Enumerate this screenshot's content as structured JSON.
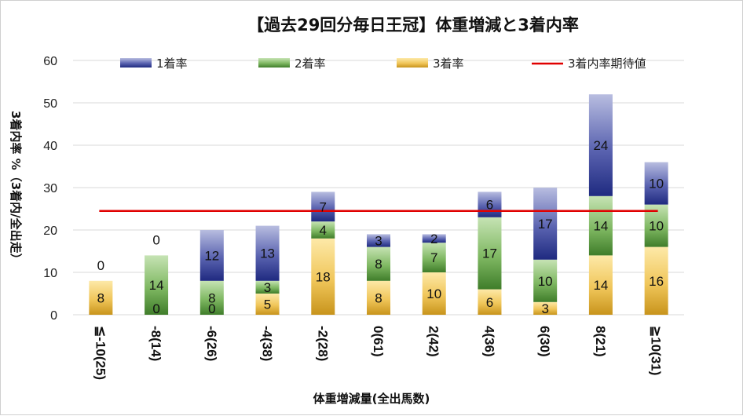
{
  "chart_data": {
    "type": "bar",
    "title": "【過去29回分毎日王冠】体重増減と3着内率",
    "xlabel": "体重増減量(全出馬数)",
    "ylabel": "3着内率 %（3着内/全出走）",
    "ylim": [
      0,
      60
    ],
    "yticks": [
      0,
      10,
      20,
      30,
      40,
      50,
      60
    ],
    "grid": true,
    "legend_position": "top",
    "categories": [
      "≦-10(25)",
      "-8(14)",
      "-6(26)",
      "-4(38)",
      "-2(28)",
      "0(61)",
      "2(42)",
      "4(36)",
      "6(30)",
      "8(21)",
      "≧10(31)"
    ],
    "series": [
      {
        "name": "3着率",
        "color": "#e8b84a",
        "values": [
          8,
          0,
          0,
          5,
          18,
          8,
          10,
          6,
          3,
          14,
          16
        ],
        "labels": [
          "8",
          "0",
          "0",
          "5",
          "18",
          "8",
          "10",
          "6",
          "3",
          "14",
          "16"
        ]
      },
      {
        "name": "2着率",
        "color": "#6aa84f",
        "values": [
          0,
          14,
          8,
          3,
          4,
          8,
          7,
          17,
          10,
          14,
          10
        ],
        "labels": [
          "",
          "14",
          "8",
          "3",
          "4",
          "8",
          "7",
          "17",
          "10",
          "14",
          "10"
        ]
      },
      {
        "name": "1着率",
        "color": "#3c4aa0",
        "values": [
          0,
          0,
          12,
          13,
          7,
          3,
          2,
          6,
          17,
          24,
          10
        ],
        "labels": [
          "0",
          "0",
          "12",
          "13",
          "7",
          "3",
          "2",
          "6",
          "17",
          "24",
          "10"
        ]
      }
    ],
    "reference_line": {
      "name": "3着内率期待値",
      "value": 24.5,
      "color": "#e00000"
    }
  }
}
